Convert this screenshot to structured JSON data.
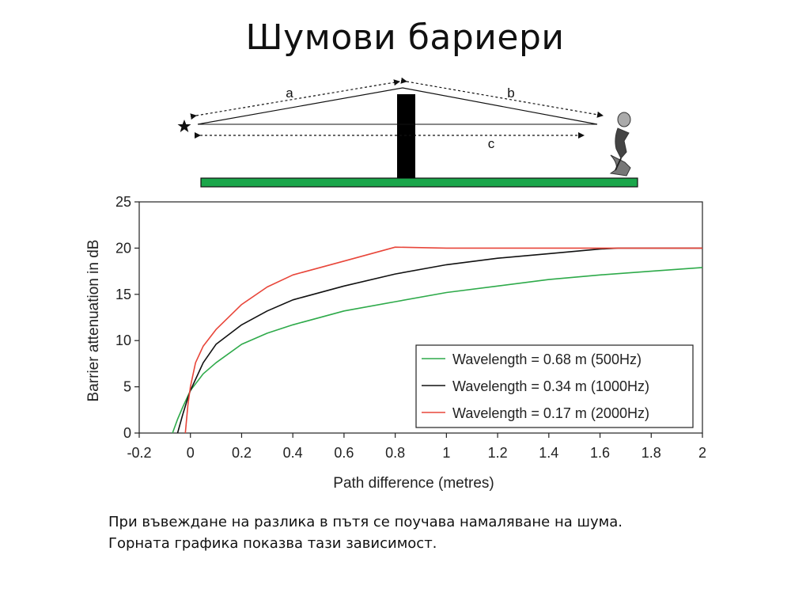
{
  "slide": {
    "title": "Шумови бариери",
    "caption": [
      "При въвеждане на разлика в пътя се поучава намаляване на шума.",
      "Горната графика показва тази зависимост."
    ]
  },
  "diagram": {
    "labels": {
      "a": "a",
      "b": "b",
      "c": "c"
    },
    "source_icon": "star-icon",
    "listener_icon": "person-icon",
    "colors": {
      "ground": "#1aa64a",
      "barrier": "#000000"
    }
  },
  "chart_data": {
    "type": "line",
    "xlabel": "Path difference (metres)",
    "ylabel": "Barrier attenuation in dB",
    "xlim": [
      -0.2,
      2
    ],
    "ylim": [
      0,
      25
    ],
    "xticks": [
      "-0.2",
      "0",
      "0.2",
      "0.4",
      "0.6",
      "0.8",
      "1",
      "1.2",
      "1.4",
      "1.6",
      "1.8",
      "2"
    ],
    "yticks": [
      "0",
      "5",
      "10",
      "15",
      "20",
      "25"
    ],
    "legend_position": "bottom-right",
    "grid": false,
    "series": [
      {
        "name": "Wavelength = 0.68 m (500Hz)",
        "color": "#2eaa4a",
        "x": [
          -0.07,
          -0.05,
          -0.03,
          0,
          0.05,
          0.1,
          0.2,
          0.3,
          0.4,
          0.6,
          0.8,
          1.0,
          1.2,
          1.4,
          1.6,
          1.8,
          2.0
        ],
        "y": [
          0,
          1.5,
          2.8,
          4.6,
          6.4,
          7.6,
          9.6,
          10.8,
          11.7,
          13.2,
          14.2,
          15.2,
          15.9,
          16.6,
          17.1,
          17.5,
          17.9
        ]
      },
      {
        "name": "Wavelength = 0.34 m (1000Hz)",
        "color": "#111111",
        "x": [
          -0.05,
          -0.03,
          -0.01,
          0,
          0.05,
          0.1,
          0.2,
          0.3,
          0.4,
          0.6,
          0.8,
          1.0,
          1.2,
          1.4,
          1.6,
          1.67,
          2.0
        ],
        "y": [
          0,
          2.0,
          3.8,
          4.6,
          7.6,
          9.6,
          11.7,
          13.2,
          14.4,
          15.9,
          17.2,
          18.2,
          18.9,
          19.4,
          19.9,
          20.0,
          20.0
        ]
      },
      {
        "name": "Wavelength = 0.17 m (2000Hz)",
        "color": "#e8463a",
        "x": [
          -0.02,
          -0.01,
          0,
          0.02,
          0.05,
          0.1,
          0.2,
          0.3,
          0.4,
          0.6,
          0.8,
          1.0,
          2.0
        ],
        "y": [
          0,
          3.0,
          5.0,
          7.6,
          9.4,
          11.2,
          13.9,
          15.8,
          17.1,
          18.6,
          20.1,
          20.0,
          20.0
        ]
      }
    ]
  }
}
